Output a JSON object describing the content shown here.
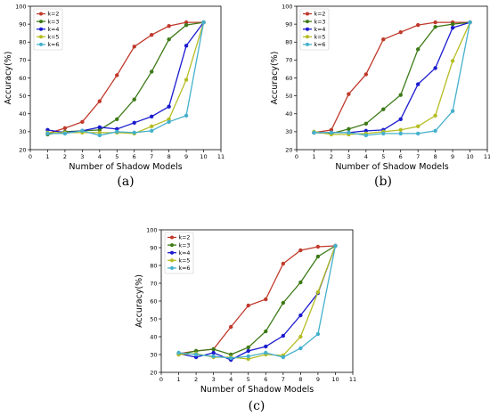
{
  "chart_data": [
    {
      "panel_label": "(a)",
      "type": "line",
      "xlabel": "Number of Shadow Models",
      "ylabel": "Accuracy(%)",
      "xlim": [
        0,
        11
      ],
      "ylim": [
        20,
        100
      ],
      "xticks": [
        "0",
        "1",
        "2",
        "3",
        "4",
        "5",
        "6",
        "7",
        "8",
        "9",
        "10",
        "11"
      ],
      "yticks": [
        "20",
        "30",
        "40",
        "50",
        "60",
        "70",
        "80",
        "90",
        "100"
      ],
      "x": [
        1,
        2,
        3,
        4,
        5,
        6,
        7,
        8,
        9,
        10
      ],
      "legend_position": "top-left",
      "grid": false,
      "series": [
        {
          "name": "k=2",
          "color": "#c0392b",
          "values": [
            29,
            32,
            35.5,
            47,
            61.5,
            77.5,
            84,
            89,
            91,
            91
          ]
        },
        {
          "name": "k=3",
          "color": "#3d7a17",
          "values": [
            28.5,
            30,
            30.5,
            31,
            37,
            48,
            63.5,
            81.5,
            89.5,
            91
          ]
        },
        {
          "name": "k=4",
          "color": "#1a1ad0",
          "values": [
            31,
            29.5,
            30.5,
            32.5,
            31.5,
            35,
            38.5,
            44,
            78,
            91
          ]
        },
        {
          "name": "k=5",
          "color": "#b5bd22",
          "values": [
            29.5,
            29.5,
            29.5,
            29.5,
            29.5,
            29,
            33,
            37,
            59,
            91
          ]
        },
        {
          "name": "k=6",
          "color": "#45b0cc",
          "values": [
            29,
            29,
            30.5,
            28,
            30,
            29.5,
            30.5,
            35.5,
            39,
            91
          ]
        }
      ]
    },
    {
      "panel_label": "(b)",
      "type": "line",
      "xlabel": "Number of Shadow Models",
      "ylabel": "Accuracy(%)",
      "xlim": [
        0,
        11
      ],
      "ylim": [
        20,
        100
      ],
      "xticks": [
        "0",
        "1",
        "2",
        "3",
        "4",
        "5",
        "6",
        "7",
        "8",
        "9",
        "10",
        "11"
      ],
      "yticks": [
        "20",
        "30",
        "40",
        "50",
        "60",
        "70",
        "80",
        "90",
        "100"
      ],
      "x": [
        1,
        2,
        3,
        4,
        5,
        6,
        7,
        8,
        9,
        10
      ],
      "legend_position": "top-left",
      "grid": false,
      "series": [
        {
          "name": "k=2",
          "color": "#c0392b",
          "values": [
            29.5,
            31,
            51,
            62,
            81.5,
            85.5,
            89.5,
            91,
            91,
            91
          ]
        },
        {
          "name": "k=3",
          "color": "#3d7a17",
          "values": [
            29.5,
            29,
            31.5,
            34.5,
            42.5,
            50.5,
            76,
            88.5,
            90,
            91
          ]
        },
        {
          "name": "k=4",
          "color": "#1a1ad0",
          "values": [
            29.5,
            29.5,
            29.5,
            30.5,
            31,
            37,
            56.5,
            65.5,
            88,
            91
          ]
        },
        {
          "name": "k=5",
          "color": "#b5bd22",
          "values": [
            30,
            28.5,
            28.5,
            29,
            30,
            31,
            33,
            39,
            69.5,
            91
          ]
        },
        {
          "name": "k=6",
          "color": "#45b0cc",
          "values": [
            29.5,
            29.5,
            29.5,
            28,
            29,
            29,
            29,
            30.5,
            41.5,
            91
          ]
        }
      ]
    },
    {
      "panel_label": "(c)",
      "type": "line",
      "xlabel": "Number of Shadow Models",
      "ylabel": "Accuracy(%)",
      "xlim": [
        0,
        11
      ],
      "ylim": [
        20,
        100
      ],
      "xticks": [
        "0",
        "1",
        "2",
        "3",
        "4",
        "5",
        "6",
        "7",
        "8",
        "9",
        "10",
        "11"
      ],
      "yticks": [
        "20",
        "30",
        "40",
        "50",
        "60",
        "70",
        "80",
        "90",
        "100"
      ],
      "x": [
        1,
        2,
        3,
        4,
        5,
        6,
        7,
        8,
        9,
        10
      ],
      "legend_position": "top-left",
      "grid": false,
      "series": [
        {
          "name": "k=2",
          "color": "#c0392b",
          "values": [
            30.5,
            32,
            33,
            45.5,
            57.5,
            61,
            81,
            88.5,
            90.5,
            91
          ]
        },
        {
          "name": "k=3",
          "color": "#3d7a17",
          "values": [
            30,
            32,
            33,
            30,
            34,
            43,
            59,
            70.5,
            85,
            91
          ]
        },
        {
          "name": "k=4",
          "color": "#1a1ad0",
          "values": [
            30.5,
            28.5,
            31,
            27,
            32,
            34.5,
            40.5,
            52,
            64.5,
            91
          ]
        },
        {
          "name": "k=5",
          "color": "#b5bd22",
          "values": [
            30,
            30.5,
            28.5,
            28.5,
            27.5,
            30,
            29.5,
            40,
            65,
            91
          ]
        },
        {
          "name": "k=6",
          "color": "#45b0cc",
          "values": [
            31,
            30,
            29,
            28,
            29,
            31,
            28.5,
            33.5,
            41.5,
            91
          ]
        }
      ]
    }
  ]
}
